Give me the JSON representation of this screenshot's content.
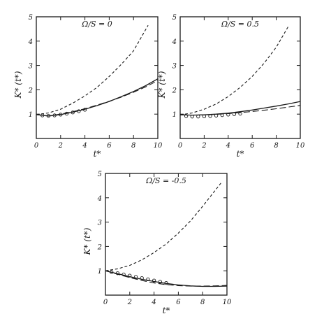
{
  "chart_data": [
    {
      "type": "line",
      "title": "Ω/S = 0",
      "xlabel": "t*",
      "ylabel": "K* (t*)",
      "xlim": [
        0,
        10
      ],
      "ylim": [
        0,
        5
      ],
      "xticks": [
        0,
        2,
        4,
        6,
        8,
        10
      ],
      "yticks": [
        1,
        2,
        3,
        4,
        5
      ],
      "series": [
        {
          "style": "solid",
          "x": [
            0,
            1,
            2,
            3,
            4,
            5,
            6,
            7,
            8,
            9,
            10
          ],
          "y": [
            0.98,
            0.92,
            0.98,
            1.08,
            1.2,
            1.35,
            1.52,
            1.72,
            1.93,
            2.17,
            2.45
          ]
        },
        {
          "style": "long-dash",
          "x": [
            0,
            1,
            2,
            3,
            4,
            5,
            6,
            7,
            8,
            9,
            10
          ],
          "y": [
            0.98,
            0.93,
            1.0,
            1.1,
            1.22,
            1.37,
            1.53,
            1.7,
            1.9,
            2.12,
            2.38
          ]
        },
        {
          "style": "short-dash",
          "x": [
            0,
            1,
            2,
            3,
            4,
            5,
            6,
            7,
            8,
            9.2
          ],
          "y": [
            0.98,
            1.05,
            1.2,
            1.45,
            1.75,
            2.1,
            2.55,
            3.05,
            3.6,
            4.65
          ]
        },
        {
          "style": "circles",
          "x": [
            0.5,
            1.0,
            1.5,
            2.0,
            2.5,
            3.0,
            3.5,
            4.0
          ],
          "y": [
            0.95,
            0.93,
            0.95,
            0.98,
            1.02,
            1.07,
            1.12,
            1.18
          ]
        }
      ]
    },
    {
      "type": "line",
      "title": "Ω/S = 0.5",
      "xlabel": "t*",
      "ylabel": "K* (t*)",
      "xlim": [
        0,
        10
      ],
      "ylim": [
        0,
        5
      ],
      "xticks": [
        0,
        2,
        4,
        6,
        8,
        10
      ],
      "yticks": [
        1,
        2,
        3,
        4,
        5
      ],
      "series": [
        {
          "style": "solid",
          "x": [
            0,
            1,
            2,
            3,
            4,
            5,
            6,
            7,
            8,
            9,
            10
          ],
          "y": [
            0.97,
            0.96,
            0.97,
            1.0,
            1.04,
            1.1,
            1.17,
            1.25,
            1.33,
            1.42,
            1.52
          ]
        },
        {
          "style": "long-dash",
          "x": [
            0,
            1,
            2,
            3,
            4,
            5,
            6,
            7,
            8,
            9,
            10
          ],
          "y": [
            0.97,
            0.96,
            0.97,
            0.99,
            1.02,
            1.06,
            1.11,
            1.16,
            1.22,
            1.29,
            1.36
          ]
        },
        {
          "style": "short-dash",
          "x": [
            0,
            1,
            2,
            3,
            4,
            5,
            6,
            7,
            8,
            9
          ],
          "y": [
            0.97,
            1.05,
            1.2,
            1.42,
            1.72,
            2.1,
            2.55,
            3.1,
            3.75,
            4.6
          ]
        },
        {
          "style": "circles",
          "x": [
            0.5,
            1.0,
            1.5,
            2.0,
            2.5,
            3.0,
            3.5,
            4.0,
            4.5,
            5.0
          ],
          "y": [
            0.92,
            0.9,
            0.9,
            0.91,
            0.92,
            0.94,
            0.96,
            0.98,
            1.0,
            1.02
          ]
        }
      ]
    },
    {
      "type": "line",
      "title": "Ω/S = -0.5",
      "xlabel": "t*",
      "ylabel": "K* (t*)",
      "xlim": [
        0,
        10
      ],
      "ylim": [
        0,
        5
      ],
      "xticks": [
        0,
        2,
        4,
        6,
        8,
        10
      ],
      "yticks": [
        1,
        2,
        3,
        4,
        5
      ],
      "series": [
        {
          "style": "solid",
          "x": [
            0,
            1,
            2,
            3,
            4,
            5,
            6,
            7,
            8,
            9,
            10
          ],
          "y": [
            1.0,
            0.88,
            0.76,
            0.65,
            0.56,
            0.48,
            0.42,
            0.38,
            0.36,
            0.36,
            0.37
          ]
        },
        {
          "style": "long-dash",
          "x": [
            0,
            1,
            2,
            3,
            4,
            5,
            6,
            7,
            8,
            9,
            10
          ],
          "y": [
            1.0,
            0.86,
            0.72,
            0.6,
            0.5,
            0.43,
            0.39,
            0.37,
            0.37,
            0.38,
            0.4
          ]
        },
        {
          "style": "short-dash",
          "x": [
            0,
            1,
            2,
            3,
            4,
            5,
            6,
            7,
            8,
            9.5
          ],
          "y": [
            1.0,
            1.08,
            1.22,
            1.45,
            1.75,
            2.1,
            2.55,
            3.05,
            3.65,
            4.6
          ]
        },
        {
          "style": "circles",
          "x": [
            0.5,
            1.0,
            1.5,
            2.0,
            2.5,
            3.0,
            3.5,
            4.0,
            4.5,
            5.0
          ],
          "y": [
            0.95,
            0.9,
            0.85,
            0.8,
            0.75,
            0.7,
            0.65,
            0.6,
            0.55,
            0.5
          ]
        }
      ]
    }
  ]
}
